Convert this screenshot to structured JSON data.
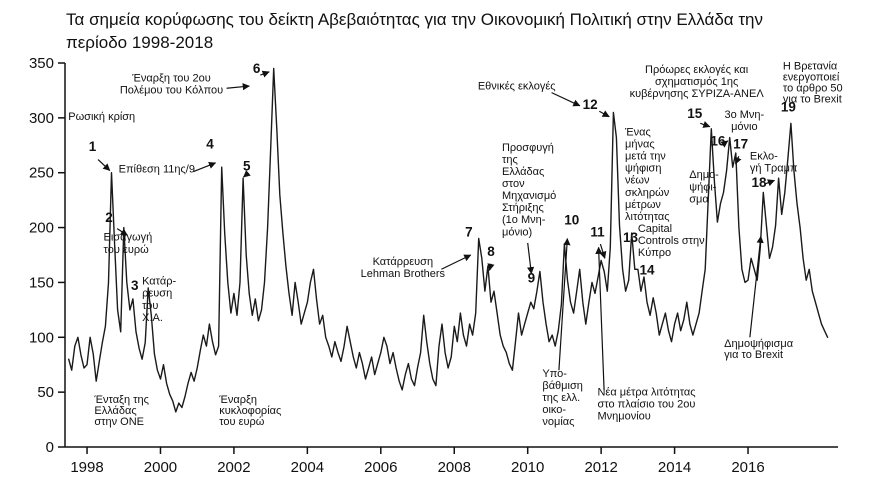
{
  "title": {
    "text": "Τα σημεία κορύφωσης του δείκτη Αβεβαιότητας για την Οικονομική Πολιτική στην Ελλάδα την περίοδο 1998-2018"
  },
  "chart_data": {
    "type": "line",
    "title": "Τα σημεία κορύφωσης του δείκτη Αβεβαιότητας για την Οικονομική Πολιτική στην Ελλάδα την περίοδο 1998-2018",
    "xlabel": "",
    "ylabel": "",
    "grid": false,
    "legend": "none",
    "line_color": "#1a1a1a",
    "x_domain": [
      1997.4,
      2018.45
    ],
    "y_domain": [
      0,
      350
    ],
    "y_ticks": [
      0,
      50,
      100,
      150,
      200,
      250,
      300,
      350
    ],
    "x_ticks": [
      1998,
      2000,
      2002,
      2004,
      2006,
      2008,
      2010,
      2012,
      2014,
      2016
    ],
    "x_start": 1997.5,
    "x_step_months": 1,
    "values": [
      80,
      70,
      92,
      100,
      84,
      72,
      75,
      100,
      85,
      60,
      78,
      95,
      110,
      150,
      250,
      185,
      125,
      105,
      200,
      150,
      125,
      135,
      105,
      90,
      80,
      95,
      145,
      120,
      85,
      70,
      62,
      75,
      58,
      48,
      42,
      32,
      40,
      36,
      46,
      58,
      68,
      60,
      72,
      88,
      102,
      92,
      112,
      96,
      84,
      92,
      255,
      195,
      150,
      122,
      140,
      120,
      150,
      245,
      175,
      140,
      120,
      135,
      115,
      125,
      150,
      200,
      270,
      345,
      290,
      230,
      195,
      165,
      140,
      120,
      150,
      132,
      112,
      122,
      132,
      150,
      162,
      135,
      112,
      120,
      100,
      92,
      82,
      96,
      86,
      78,
      92,
      110,
      96,
      82,
      72,
      86,
      76,
      62,
      72,
      82,
      66,
      76,
      86,
      100,
      92,
      76,
      86,
      72,
      60,
      52,
      66,
      76,
      62,
      56,
      72,
      86,
      120,
      96,
      76,
      62,
      56,
      92,
      112,
      86,
      72,
      82,
      110,
      96,
      122,
      102,
      92,
      112,
      102,
      122,
      190,
      172,
      142,
      165,
      132,
      142,
      122,
      102,
      92,
      86,
      76,
      70,
      96,
      122,
      102,
      112,
      122,
      132,
      126,
      142,
      160,
      132,
      112,
      96,
      102,
      92,
      106,
      130,
      185,
      152,
      132,
      122,
      142,
      162,
      132,
      112,
      132,
      150,
      140,
      155,
      170,
      160,
      142,
      182,
      305,
      282,
      202,
      162,
      142,
      152,
      195,
      162,
      162,
      142,
      155,
      132,
      120,
      136,
      122,
      102,
      112,
      122,
      106,
      96,
      112,
      122,
      106,
      116,
      132,
      112,
      102,
      112,
      122,
      142,
      162,
      225,
      290,
      242,
      205,
      222,
      232,
      252,
      282,
      255,
      268,
      200,
      162,
      150,
      152,
      172,
      162,
      152,
      182,
      232,
      202,
      172,
      182,
      202,
      245,
      212,
      232,
      262,
      295,
      252,
      222,
      200,
      172,
      152,
      162,
      142,
      132,
      122,
      112,
      106,
      100
    ],
    "annotations": [
      {
        "num": "1",
        "nx": 1998.15,
        "ny": 270,
        "lines": [
          "Ρωσική κρίση"
        ],
        "lx": 1998.4,
        "ly": 298,
        "align": "middle",
        "arrows": [
          [
            1998.3,
            262,
            1998.62,
            252
          ]
        ]
      },
      {
        "num": "2",
        "nx": 1998.6,
        "ny": 205,
        "lines": [
          "Εισαγωγή",
          "του ευρώ"
        ],
        "lx": 1998.45,
        "ly": 188,
        "align": "start",
        "arrows": [
          [
            1998.82,
            199,
            1999.1,
            193
          ]
        ]
      },
      {
        "num": "3",
        "nx": 1999.3,
        "ny": 143,
        "lines": [
          "Κατάρ-",
          "ρευση",
          "του",
          "Χ.Α."
        ],
        "lx": 1999.5,
        "ly": 148,
        "align": "start",
        "arrows": []
      },
      {
        "num": "4",
        "nx": 2001.35,
        "ny": 272,
        "lines": [
          "Επίθεση 11ης/9"
        ],
        "lx": 1999.9,
        "ly": 250,
        "align": "middle",
        "arrows": [
          [
            2000.9,
            251,
            2001.5,
            259
          ]
        ]
      },
      {
        "num": "5",
        "nx": 2002.35,
        "ny": 252,
        "lines": [],
        "arrows": [
          [
            2002.33,
            248,
            2002.26,
            246
          ]
        ]
      },
      {
        "num": "6",
        "nx": 2002.62,
        "ny": 341,
        "lines": [
          "Έναρξη του 2ου",
          "Πολέμου του Κόλπου"
        ],
        "lx": 2000.3,
        "ly": 333,
        "align": "middle",
        "arrows": [
          [
            2001.8,
            327,
            2002.42,
            329
          ],
          [
            2002.72,
            339,
            2002.96,
            342
          ]
        ]
      },
      {
        "num": "7",
        "nx": 2008.4,
        "ny": 192,
        "lines": [
          "Κατάρρευση",
          "Lehman Brothers"
        ],
        "lx": 2006.6,
        "ly": 166,
        "align": "middle",
        "arrows": [
          [
            2007.65,
            162,
            2008.45,
            175
          ]
        ]
      },
      {
        "num": "8",
        "nx": 2009.0,
        "ny": 174,
        "lines": [],
        "arrows": [
          [
            2009.0,
            167,
            2008.96,
            161
          ]
        ]
      },
      {
        "num": "9",
        "nx": 2010.1,
        "ny": 150,
        "lines": [
          "Προσφυγή",
          "της",
          "Ελλάδας",
          "στον",
          "Μηχανισμό",
          "Στήριξης",
          "(1ο Μνη-",
          "μόνιο)"
        ],
        "lx": 2009.3,
        "ly": 270,
        "align": "start",
        "arrows": [
          [
            2010.0,
            186,
            2010.1,
            158
          ]
        ]
      },
      {
        "num": "10",
        "nx": 2011.2,
        "ny": 203,
        "lines": [
          "Υπο-",
          "βάθμιση",
          "της ελλ.",
          "οικο-",
          "νομίας"
        ],
        "lx": 2010.4,
        "ly": 64,
        "align": "start",
        "arrows": [
          [
            2010.85,
            70,
            2011.08,
            190
          ]
        ]
      },
      {
        "num": "11",
        "nx": 2011.9,
        "ny": 192,
        "lines": [
          "Νέα μέτρα λιτότητας",
          "στο πλαίσιο του 2ου",
          "Μνημονίου"
        ],
        "lx": 2011.9,
        "ly": 47,
        "align": "start",
        "arrows": [
          [
            2012.08,
            52,
            2011.93,
            182
          ],
          [
            2011.98,
            185,
            2012.1,
            172
          ]
        ]
      },
      {
        "num": "12",
        "nx": 2011.7,
        "ny": 308,
        "lines": [
          "Εθνικές εκλογές"
        ],
        "lx": 2009.7,
        "ly": 326,
        "align": "middle",
        "arrows": [
          [
            2010.65,
            323,
            2011.42,
            311
          ],
          [
            2011.95,
            306,
            2012.22,
            301
          ]
        ]
      },
      {
        "num": "13",
        "nx": 2012.8,
        "ny": 187,
        "lines": [
          "Ένας",
          "μήνας",
          "μετά την",
          "ψήφιση",
          "νέων",
          "σκληρών",
          "μέτρων",
          "λιτότητας"
        ],
        "lx": 2012.65,
        "ly": 284,
        "align": "start",
        "arrows": []
      },
      {
        "num": "14",
        "nx": 2013.25,
        "ny": 157,
        "lines": [
          "Capital",
          "Controls στην",
          "Κύπρο"
        ],
        "lx": 2013.0,
        "ly": 196,
        "align": "start",
        "arrows": []
      },
      {
        "num": "15",
        "nx": 2014.55,
        "ny": 300,
        "lines": [
          "Πρόωρες εκλογές και",
          "σχηματισμός 1ης",
          "κυβέρνησης ΣΥΡΙΖΑ-ΑΝΕΛ"
        ],
        "lx": 2014.6,
        "ly": 341,
        "align": "middle",
        "arrows": [
          [
            2014.7,
            295,
            2014.96,
            292
          ]
        ]
      },
      {
        "num": "16",
        "nx": 2015.18,
        "ny": 275,
        "lines": [
          "Δημο-",
          "ψήφι-",
          "σμα"
        ],
        "lx": 2014.4,
        "ly": 245,
        "align": "start",
        "arrows": [
          [
            2015.28,
            275,
            2015.45,
            279
          ]
        ]
      },
      {
        "num": "17",
        "nx": 2015.8,
        "ny": 272,
        "lines": [
          "3ο Μνη-",
          "μόνιο"
        ],
        "lx": 2015.9,
        "ly": 300,
        "align": "middle",
        "arrows": [
          [
            2015.75,
            265,
            2015.66,
            258
          ]
        ]
      },
      {
        "num": "18",
        "nx": 2016.3,
        "ny": 237,
        "lines": [
          "Εκλο-",
          "γή Τραμπ"
        ],
        "lx": 2016.05,
        "ly": 262,
        "align": "start",
        "arrows": [
          [
            2016.48,
            240,
            2016.72,
            243
          ]
        ]
      },
      {
        "num": "19",
        "nx": 2017.1,
        "ny": 306,
        "lines": [
          "Η Βρετανία",
          "ενεργοποιεί",
          "το άρθρο 50",
          "για το Brexit"
        ],
        "lx": 2016.95,
        "ly": 344,
        "lstep": 10,
        "align": "start",
        "arrows": []
      },
      {
        "num": null,
        "lines": [
          "Ένταξη της",
          "Ελλάδας",
          "στην ΟΝΕ"
        ],
        "lx": 1998.2,
        "ly": 40,
        "lstep": 10,
        "align": "start",
        "arrows": []
      },
      {
        "num": null,
        "lines": [
          "Έναρξη",
          "κυκλοφορίας",
          "του ευρώ"
        ],
        "lx": 2001.6,
        "ly": 40,
        "lstep": 10,
        "align": "start",
        "arrows": []
      },
      {
        "num": null,
        "lines": [
          "Δημοψήφισμα",
          "για το Brexit"
        ],
        "lx": 2015.35,
        "ly": 91,
        "lstep": 10,
        "align": "start",
        "arrows": [
          [
            2016.05,
            100,
            2016.35,
            192
          ]
        ]
      }
    ]
  }
}
